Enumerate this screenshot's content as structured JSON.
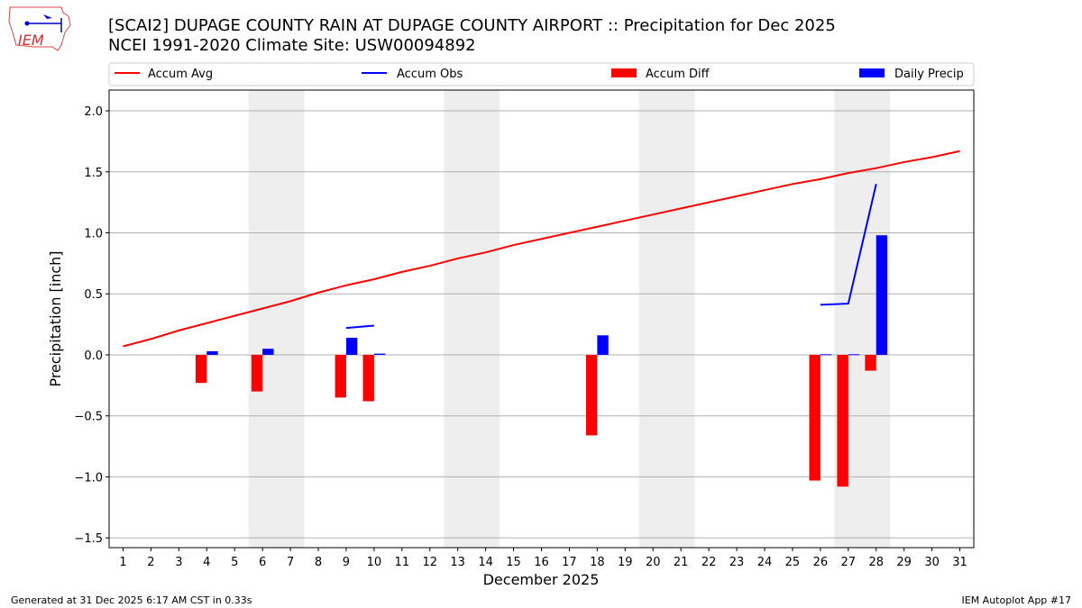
{
  "header": {
    "title_line1": "[SCAI2] DUPAGE COUNTY RAIN AT DUPAGE COUNTY AIRPORT :: Precipitation for Dec 2025",
    "title_line2": "NCEI 1991-2020 Climate Site: USW00094892"
  },
  "logo": {
    "text": "IEM"
  },
  "footer": {
    "left": "Generated at 31 Dec 2025 6:17 AM CST in 0.33s",
    "right": "IEM Autoplot App #17"
  },
  "chart_data": {
    "type": "bar",
    "xlabel": "December 2025",
    "ylabel": "Precipitation [inch]",
    "xlim": [
      0.5,
      31.5
    ],
    "ylim": [
      -1.58,
      2.17
    ],
    "yticks": [
      -1.5,
      -1.0,
      -0.5,
      0.0,
      0.5,
      1.0,
      1.5,
      2.0
    ],
    "ytick_labels": [
      "−1.5",
      "−1.0",
      "−0.5",
      "0.0",
      "0.5",
      "1.0",
      "1.5",
      "2.0"
    ],
    "x": [
      1,
      2,
      3,
      4,
      5,
      6,
      7,
      8,
      9,
      10,
      11,
      12,
      13,
      14,
      15,
      16,
      17,
      18,
      19,
      20,
      21,
      22,
      23,
      24,
      25,
      26,
      27,
      28,
      29,
      30,
      31
    ],
    "grid": "horizontal",
    "legend_placement": "top",
    "weekend_shading": [
      [
        5.5,
        7.5
      ],
      [
        12.5,
        14.5
      ],
      [
        19.5,
        21.5
      ],
      [
        26.5,
        28.5
      ]
    ],
    "colors": {
      "avg": "#ff0000",
      "obs": "#0000ff",
      "diff": "#ff0000",
      "daily": "#0000ff",
      "shade": "#eeeeee"
    },
    "series": [
      {
        "name": "Accum Avg",
        "kind": "line",
        "points": [
          [
            1,
            0.07
          ],
          [
            2,
            0.13
          ],
          [
            3,
            0.2
          ],
          [
            4,
            0.26
          ],
          [
            5,
            0.32
          ],
          [
            6,
            0.38
          ],
          [
            7,
            0.44
          ],
          [
            8,
            0.51
          ],
          [
            9,
            0.57
          ],
          [
            10,
            0.62
          ],
          [
            11,
            0.68
          ],
          [
            12,
            0.73
          ],
          [
            13,
            0.79
          ],
          [
            14,
            0.84
          ],
          [
            15,
            0.9
          ],
          [
            16,
            0.95
          ],
          [
            17,
            1.0
          ],
          [
            18,
            1.05
          ],
          [
            19,
            1.1
          ],
          [
            20,
            1.15
          ],
          [
            21,
            1.2
          ],
          [
            22,
            1.25
          ],
          [
            23,
            1.3
          ],
          [
            24,
            1.35
          ],
          [
            25,
            1.4
          ],
          [
            26,
            1.44
          ],
          [
            27,
            1.49
          ],
          [
            28,
            1.53
          ],
          [
            29,
            1.58
          ],
          [
            30,
            1.62
          ],
          [
            31,
            1.67
          ]
        ]
      },
      {
        "name": "Accum Obs",
        "kind": "line",
        "segments": [
          [
            [
              9,
              0.22
            ],
            [
              10,
              0.24
            ]
          ],
          [
            [
              26,
              0.41
            ],
            [
              27,
              0.42
            ],
            [
              28,
              1.4
            ]
          ]
        ]
      },
      {
        "name": "Accum Diff",
        "kind": "bar",
        "points": [
          [
            4,
            -0.23
          ],
          [
            6,
            -0.3
          ],
          [
            9,
            -0.35
          ],
          [
            10,
            -0.38
          ],
          [
            18,
            -0.66
          ],
          [
            26,
            -1.03
          ],
          [
            27,
            -1.08
          ],
          [
            28,
            -0.13
          ]
        ]
      },
      {
        "name": "Daily Precip",
        "kind": "bar",
        "points": [
          [
            4,
            0.03
          ],
          [
            6,
            0.05
          ],
          [
            9,
            0.14
          ],
          [
            10,
            0.01
          ],
          [
            18,
            0.16
          ],
          [
            26,
            0.005
          ],
          [
            27,
            0.005
          ],
          [
            28,
            0.98
          ]
        ]
      }
    ]
  }
}
